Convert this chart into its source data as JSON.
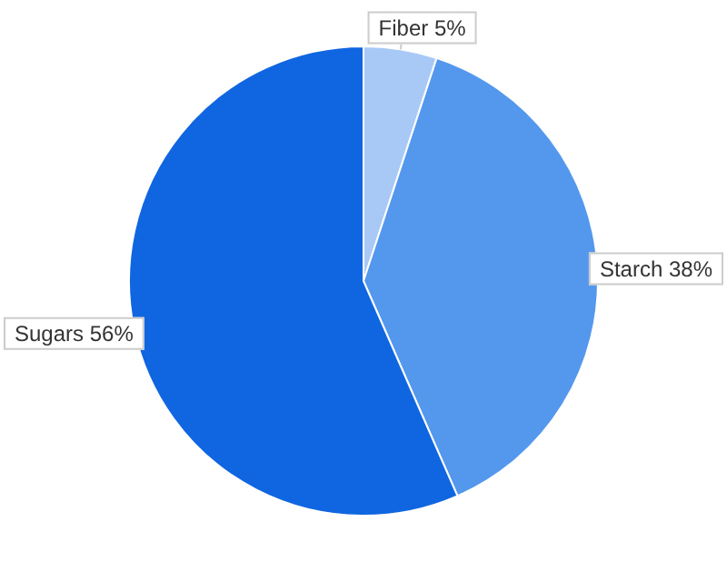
{
  "chart_data": {
    "type": "pie",
    "categories": [
      "Fiber",
      "Starch",
      "Sugars"
    ],
    "values": [
      5,
      38,
      56
    ],
    "value_labels": [
      "5%",
      "38%",
      "56%"
    ],
    "colors": [
      "#a8c8f6",
      "#5498ee",
      "#1065e0"
    ],
    "legend": false
  }
}
